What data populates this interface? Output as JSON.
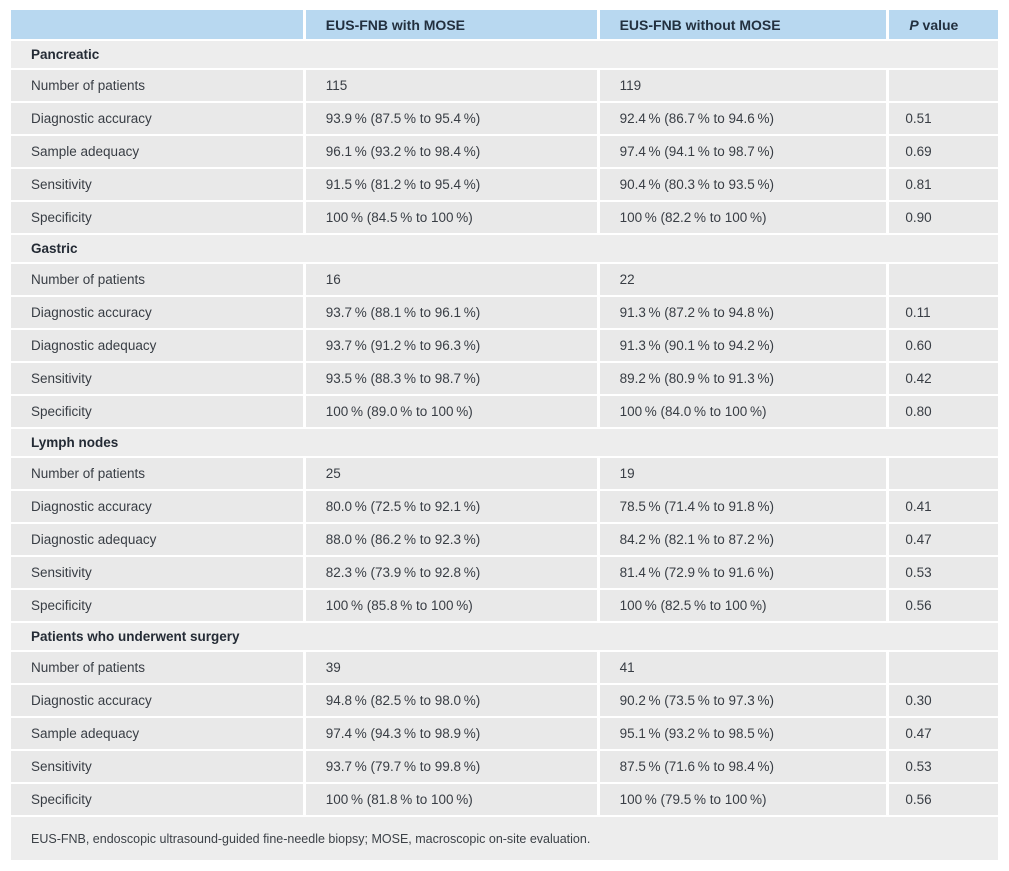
{
  "colors": {
    "header_bg": "#b8d8f0",
    "row_bg": "#e9e9e9",
    "section_bg": "#ededed"
  },
  "header": {
    "with_mose": "EUS-FNB with MOSE",
    "without_mose": "EUS-FNB without MOSE",
    "p_italic": "P",
    "p_rest": " value"
  },
  "sections": [
    {
      "title": "Pancreatic",
      "rows": [
        [
          "Number of patients",
          "115",
          "119",
          ""
        ],
        [
          "Diagnostic accuracy",
          "93.9 % (87.5 % to 95.4 %)",
          "92.4 % (86.7 % to 94.6 %)",
          "0.51"
        ],
        [
          "Sample adequacy",
          "96.1 % (93.2 % to 98.4 %)",
          "97.4 % (94.1 % to 98.7 %)",
          "0.69"
        ],
        [
          "Sensitivity",
          "91.5 % (81.2 % to 95.4 %)",
          "90.4 % (80.3 % to 93.5 %)",
          "0.81"
        ],
        [
          "Specificity",
          "100 % (84.5 % to 100 %)",
          "100 % (82.2 % to 100 %)",
          "0.90"
        ]
      ]
    },
    {
      "title": "Gastric",
      "rows": [
        [
          "Number of patients",
          "16",
          "22",
          ""
        ],
        [
          "Diagnostic accuracy",
          "93.7 % (88.1 % to 96.1 %)",
          "91.3 % (87.2 % to 94.8 %)",
          "0.11"
        ],
        [
          "Diagnostic adequacy",
          "93.7 % (91.2 % to 96.3 %)",
          "91.3 % (90.1 % to 94.2 %)",
          "0.60"
        ],
        [
          "Sensitivity",
          "93.5 % (88.3 % to 98.7 %)",
          "89.2 % (80.9 % to 91.3 %)",
          "0.42"
        ],
        [
          "Specificity",
          "100 % (89.0 % to 100 %)",
          "100 % (84.0 % to 100 %)",
          "0.80"
        ]
      ]
    },
    {
      "title": "Lymph nodes",
      "rows": [
        [
          "Number of patients",
          "25",
          "19",
          ""
        ],
        [
          "Diagnostic accuracy",
          "80.0 % (72.5 % to 92.1 %)",
          "78.5 % (71.4 % to 91.8 %)",
          "0.41"
        ],
        [
          "Diagnostic adequacy",
          "88.0 % (86.2 % to 92.3 %)",
          "84.2 % (82.1 % to 87.2 %)",
          "0.47"
        ],
        [
          "Sensitivity",
          "82.3 % (73.9 % to 92.8 %)",
          "81.4 % (72.9 % to 91.6 %)",
          "0.53"
        ],
        [
          "Specificity",
          "100 % (85.8 % to 100 %)",
          "100 % (82.5 % to 100 %)",
          "0.56"
        ]
      ]
    },
    {
      "title": "Patients who underwent surgery",
      "rows": [
        [
          "Number of patients",
          "39",
          "41",
          ""
        ],
        [
          "Diagnostic accuracy",
          "94.8 % (82.5 % to 98.0 %)",
          "90.2 % (73.5 % to 97.3 %)",
          "0.30"
        ],
        [
          "Sample adequacy",
          "97.4 % (94.3 % to 98.9 %)",
          "95.1 % (93.2 % to 98.5 %)",
          "0.47"
        ],
        [
          "Sensitivity",
          "93.7 % (79.7 % to 99.8 %)",
          "87.5 % (71.6 % to 98.4 %)",
          "0.53"
        ],
        [
          "Specificity",
          "100 % (81.8 % to 100 %)",
          "100 % (79.5 % to 100 %)",
          "0.56"
        ]
      ]
    }
  ],
  "footnote": "EUS-FNB, endoscopic ultrasound-guided fine-needle biopsy; MOSE, macroscopic on-site evaluation."
}
